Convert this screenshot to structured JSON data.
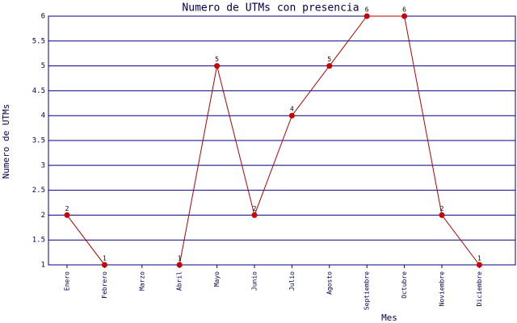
{
  "chart_data": {
    "type": "line",
    "title": "Numero de UTMs con presencia",
    "x_label": "Mes",
    "y_label": "Numero de UTMs",
    "categories": [
      "Enero",
      "Febrero",
      "Marzo",
      "Abril",
      "Mayo",
      "Junio",
      "Julio",
      "Agosto",
      "Septiembre",
      "Octubre",
      "Noviembre",
      "Diciembre"
    ],
    "series": [
      {
        "name": "UTMs",
        "color": "#b00000",
        "values": [
          2,
          1,
          null,
          1,
          5,
          2,
          4,
          5,
          6,
          6,
          2,
          1
        ]
      }
    ],
    "ylim": [
      1,
      6
    ],
    "yticks": [
      1,
      1.5,
      2,
      2.5,
      3,
      3.5,
      4,
      4.5,
      5,
      5.5,
      6
    ],
    "grid": true
  }
}
